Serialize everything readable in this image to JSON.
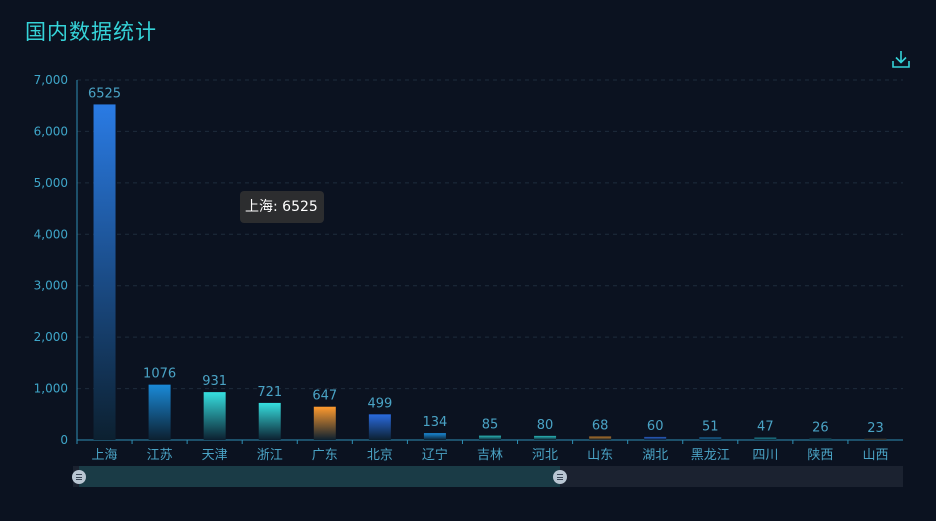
{
  "header": {
    "title": "国内数据统计",
    "download_icon": "download-icon"
  },
  "tooltip": {
    "text": "上海: 6525"
  },
  "colors": {
    "axis": "#2f8fb3",
    "tick_text": "#3fa6c9",
    "label_text": "#4aa3c5",
    "category_text": "#4aa3c5",
    "title": "#35d3d8"
  },
  "chart_data": {
    "type": "bar",
    "title": "国内数据统计",
    "xlabel": "",
    "ylabel": "",
    "ylim": [
      0,
      7000
    ],
    "yticks": [
      0,
      1000,
      2000,
      3000,
      4000,
      5000,
      6000,
      7000
    ],
    "ytick_labels": [
      "0",
      "1,000",
      "2,000",
      "3,000",
      "4,000",
      "5,000",
      "6,000",
      "7,000"
    ],
    "grid": true,
    "data_labels": true,
    "categories": [
      "上海",
      "江苏",
      "天津",
      "浙江",
      "广东",
      "北京",
      "辽宁",
      "吉林",
      "河北",
      "山东",
      "湖北",
      "黑龙江",
      "四川",
      "陕西",
      "山西"
    ],
    "values": [
      6525,
      1076,
      931,
      721,
      647,
      499,
      134,
      85,
      80,
      68,
      60,
      51,
      47,
      26,
      23
    ],
    "bar_colors": [
      [
        "#2a7be4",
        "#0c2030"
      ],
      [
        "#1a8ad8",
        "#0c2030"
      ],
      [
        "#36e0e0",
        "#0c2030"
      ],
      [
        "#36e0e0",
        "#0c2030"
      ],
      [
        "#ff9a2e",
        "#0c2030"
      ],
      [
        "#2a6be0",
        "#0c2030"
      ],
      [
        "#1a8ad8",
        "#0c2030"
      ],
      [
        "#2ab8b8",
        "#0c2030"
      ],
      [
        "#2ab8b8",
        "#0c2030"
      ],
      [
        "#c07a28",
        "#0c2030"
      ],
      [
        "#2a5ec8",
        "#0c2030"
      ],
      [
        "#1a6fa8",
        "#0c2030"
      ],
      [
        "#1f8f9f",
        "#0c2030"
      ],
      [
        "#1f7f8f",
        "#0c2030"
      ],
      [
        "#6a5a3a",
        "#0c2030"
      ]
    ]
  },
  "data_zoom": {
    "start_percent": 0,
    "end_percent": 58
  }
}
